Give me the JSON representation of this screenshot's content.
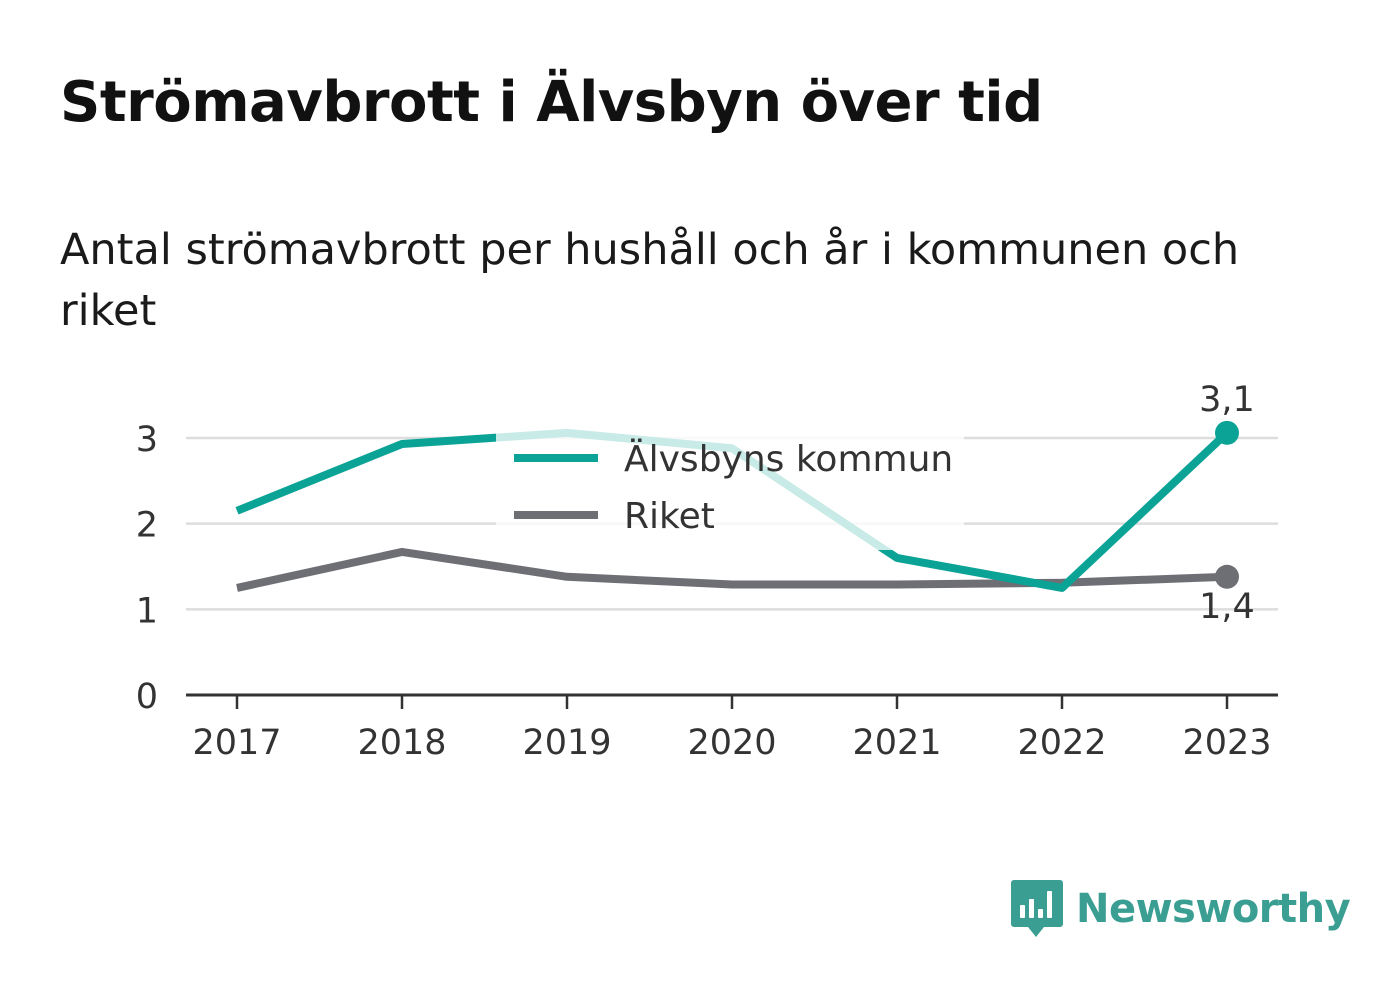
{
  "title": "Strömavbrott i Älvsbyn över tid",
  "subtitle": "Antal strömavbrott per hushåll och år i kommunen och riket",
  "brand": {
    "name": "Newsworthy",
    "icon": "newsworthy-logo-icon",
    "color": "#3a9e92"
  },
  "chart_data": {
    "type": "line",
    "x": [
      "2017",
      "2018",
      "2019",
      "2020",
      "2021",
      "2022",
      "2023"
    ],
    "series": [
      {
        "name": "Älvsbyns kommun",
        "color": "#0aa396",
        "values": [
          2.15,
          2.93,
          3.06,
          2.88,
          1.6,
          1.25,
          3.06
        ],
        "end_label": "3,1"
      },
      {
        "name": "Riket",
        "color": "#6e6e75",
        "values": [
          1.25,
          1.67,
          1.38,
          1.29,
          1.29,
          1.31,
          1.38
        ],
        "end_label": "1,4"
      }
    ],
    "yticks": [
      0,
      1,
      2,
      3
    ],
    "ylim": [
      0,
      3.5
    ],
    "grid": true,
    "legend": "top-center"
  }
}
